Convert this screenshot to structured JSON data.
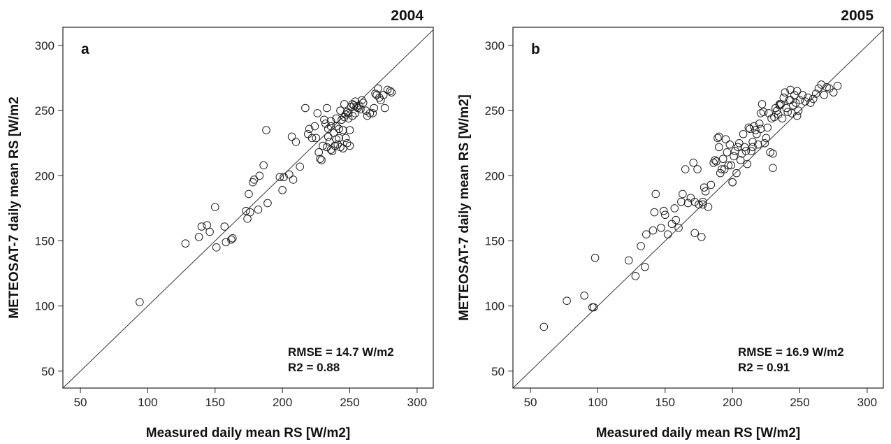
{
  "chart_data": [
    {
      "type": "scatter",
      "year_label": "2004",
      "panel_label": "a",
      "xlabel": "Measured daily mean RS [W/m2]",
      "ylabel": "METEOSAT-7 daily mean RS [W/m2",
      "xlim": [
        37,
        312
      ],
      "ylim": [
        37,
        314
      ],
      "xticks": [
        "50",
        "100",
        "150",
        "200",
        "250",
        "300"
      ],
      "yticks": [
        "50",
        "100",
        "150",
        "200",
        "250",
        "300"
      ],
      "grid": false,
      "reference_line": "1:1",
      "stats": [
        "RMSE = 14.7 W/m2",
        "R2 = 0.88"
      ],
      "x": [
        94,
        128,
        138,
        140,
        144,
        146,
        150,
        151,
        157,
        158,
        162,
        163,
        173,
        174,
        175,
        176,
        178,
        179,
        182,
        183,
        186,
        188,
        189,
        198,
        200,
        201,
        205,
        207,
        208,
        210,
        213,
        217,
        219,
        220,
        222,
        224,
        225,
        226,
        227,
        228,
        229,
        230,
        231,
        232,
        233,
        233,
        234,
        234,
        235,
        236,
        236,
        237,
        238,
        239,
        240,
        240,
        241,
        242,
        242,
        243,
        244,
        245,
        245,
        246,
        246,
        247,
        247,
        248,
        248,
        249,
        249,
        250,
        250,
        251,
        252,
        253,
        254,
        254,
        255,
        256,
        257,
        258,
        259,
        260,
        262,
        263,
        265,
        267,
        268,
        269,
        270,
        271,
        272,
        273,
        275,
        276,
        278,
        280,
        281,
        240,
        245,
        252,
        236,
        243
      ],
      "y": [
        103,
        148,
        153,
        161,
        162,
        157,
        176,
        145,
        161,
        149,
        151,
        152,
        173,
        167,
        186,
        172,
        195,
        197,
        174,
        200,
        208,
        235,
        179,
        199,
        189,
        199,
        201,
        230,
        197,
        226,
        207,
        252,
        232,
        236,
        229,
        238,
        229,
        248,
        218,
        213,
        212,
        223,
        243,
        240,
        222,
        252,
        230,
        236,
        226,
        238,
        220,
        219,
        233,
        223,
        228,
        244,
        224,
        229,
        236,
        250,
        243,
        235,
        221,
        245,
        255,
        247,
        229,
        249,
        225,
        248,
        244,
        223,
        235,
        253,
        255,
        254,
        248,
        257,
        253,
        252,
        254,
        251,
        258,
        256,
        250,
        246,
        248,
        248,
        252,
        263,
        262,
        267,
        260,
        258,
        262,
        252,
        266,
        265,
        264,
        238,
        235,
        246,
        242,
        222
      ]
    },
    {
      "type": "scatter",
      "year_label": "2005",
      "panel_label": "b",
      "xlabel": "Measured daily mean RS [W/m2]",
      "ylabel": "METEOSAT-7 daily mean RS [W/m2]",
      "xlim": [
        37,
        312
      ],
      "ylim": [
        37,
        314
      ],
      "xticks": [
        "50",
        "100",
        "150",
        "200",
        "250",
        "300"
      ],
      "yticks": [
        "50",
        "100",
        "150",
        "200",
        "250",
        "300"
      ],
      "grid": false,
      "reference_line": "1:1",
      "stats": [
        "RMSE = 16.9 W/m2",
        "R2 = 0.91"
      ],
      "x": [
        60,
        77,
        90,
        96,
        97,
        98,
        123,
        128,
        132,
        135,
        136,
        141,
        142,
        143,
        147,
        149,
        150,
        152,
        155,
        157,
        158,
        160,
        162,
        163,
        165,
        167,
        169,
        171,
        172,
        174,
        175,
        177,
        178,
        179,
        180,
        182,
        184,
        186,
        187,
        188,
        189,
        190,
        191,
        192,
        193,
        194,
        195,
        196,
        197,
        198,
        199,
        200,
        201,
        202,
        203,
        204,
        205,
        206,
        207,
        208,
        209,
        210,
        211,
        212,
        213,
        214,
        215,
        216,
        217,
        218,
        219,
        220,
        221,
        222,
        223,
        224,
        225,
        226,
        227,
        228,
        229,
        230,
        231,
        232,
        233,
        234,
        235,
        236,
        237,
        238,
        239,
        240,
        241,
        242,
        243,
        244,
        245,
        246,
        247,
        248,
        249,
        250,
        252,
        254,
        256,
        258,
        260,
        262,
        264,
        266,
        268,
        270,
        272,
        275,
        278,
        172,
        178,
        190,
        200,
        215,
        221,
        230,
        235,
        243,
        248
      ],
      "y": [
        84,
        104,
        108,
        99,
        99,
        137,
        135,
        123,
        146,
        130,
        155,
        158,
        172,
        186,
        160,
        173,
        170,
        155,
        163,
        175,
        166,
        160,
        180,
        186,
        205,
        179,
        183,
        210,
        156,
        205,
        178,
        153,
        180,
        191,
        188,
        176,
        193,
        210,
        212,
        211,
        229,
        222,
        202,
        205,
        213,
        205,
        228,
        218,
        208,
        224,
        208,
        195,
        215,
        219,
        202,
        222,
        225,
        212,
        217,
        232,
        222,
        219,
        209,
        237,
        236,
        219,
        226,
        238,
        235,
        232,
        224,
        240,
        236,
        255,
        249,
        225,
        229,
        237,
        248,
        218,
        244,
        206,
        245,
        252,
        250,
        247,
        254,
        255,
        244,
        260,
        264,
        252,
        249,
        258,
        266,
        248,
        254,
        262,
        256,
        265,
        250,
        258,
        262,
        257,
        260,
        256,
        259,
        263,
        267,
        270,
        262,
        268,
        267,
        264,
        269,
        180,
        178,
        230,
        195,
        222,
        248,
        217,
        255,
        258,
        246
      ]
    }
  ]
}
